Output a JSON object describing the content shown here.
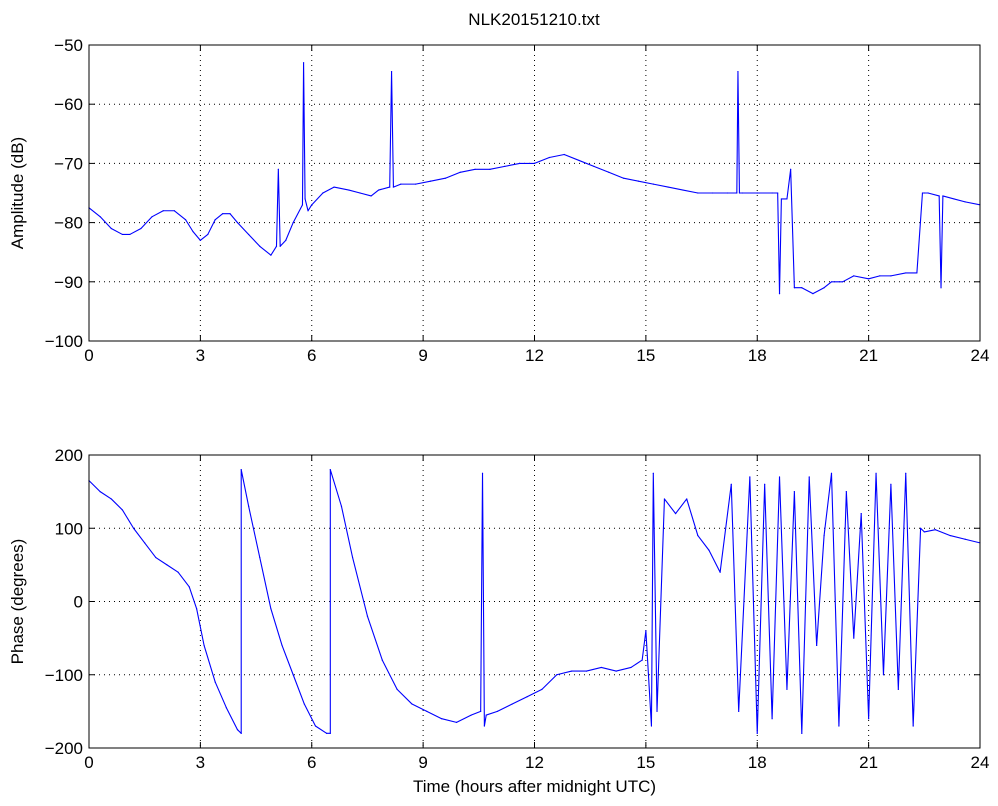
{
  "figure": {
    "title": "NLK20151210.txt",
    "series_color": "#0000ff"
  },
  "chart_data": [
    {
      "type": "line",
      "title": "NLK20151210.txt",
      "xlabel": "",
      "ylabel": "Amplitude (dB)",
      "xlim": [
        0,
        24
      ],
      "ylim": [
        -100,
        -50
      ],
      "xticks": [
        0,
        3,
        6,
        9,
        12,
        15,
        18,
        21,
        24
      ],
      "yticks": [
        -100,
        -90,
        -80,
        -70,
        -60,
        -50
      ],
      "grid": true,
      "series": [
        {
          "color": "#0000ff",
          "x": [
            0,
            0.3,
            0.6,
            0.9,
            1.1,
            1.4,
            1.7,
            2.0,
            2.3,
            2.6,
            2.8,
            3.0,
            3.2,
            3.4,
            3.6,
            3.8,
            4.0,
            4.3,
            4.6,
            4.9,
            5.05,
            5.1,
            5.15,
            5.3,
            5.5,
            5.75,
            5.78,
            5.82,
            5.9,
            6.0,
            6.3,
            6.6,
            7.0,
            7.3,
            7.6,
            7.8,
            8.1,
            8.15,
            8.2,
            8.4,
            8.8,
            9.2,
            9.6,
            10.0,
            10.4,
            10.8,
            11.2,
            11.6,
            12.0,
            12.4,
            12.8,
            13.2,
            13.6,
            14.0,
            14.4,
            14.8,
            15.2,
            15.6,
            16.0,
            16.4,
            16.8,
            17.2,
            17.45,
            17.48,
            17.52,
            17.6,
            18.0,
            18.4,
            18.55,
            18.6,
            18.65,
            18.8,
            18.9,
            19.0,
            19.2,
            19.5,
            19.8,
            20.0,
            20.3,
            20.6,
            21.0,
            21.3,
            21.6,
            22.0,
            22.3,
            22.45,
            22.5,
            22.6,
            22.9,
            22.95,
            23.0,
            23.3,
            23.6,
            24.0
          ],
          "values": [
            -77.5,
            -79,
            -81,
            -82,
            -82,
            -81,
            -79,
            -78,
            -78,
            -79.5,
            -81.5,
            -83,
            -82,
            -79.5,
            -78.5,
            -78.5,
            -80,
            -82,
            -84,
            -85.5,
            -84,
            -71,
            -84,
            -83,
            -80,
            -77,
            -53,
            -76,
            -78,
            -77,
            -75,
            -74,
            -74.5,
            -75,
            -75.5,
            -74.5,
            -74,
            -54.5,
            -74,
            -73.5,
            -73.5,
            -73,
            -72.5,
            -71.5,
            -71,
            -71,
            -70.5,
            -70,
            -70,
            -69,
            -68.5,
            -69.5,
            -70.5,
            -71.5,
            -72.5,
            -73,
            -73.5,
            -74,
            -74.5,
            -75,
            -75,
            -75,
            -75,
            -54.5,
            -75,
            -75,
            -75,
            -75,
            -75,
            -92,
            -76,
            -76,
            -71,
            -91,
            -91,
            -92,
            -91,
            -90,
            -90,
            -89,
            -89.5,
            -89,
            -89,
            -88.5,
            -88.5,
            -75,
            -75,
            -75,
            -75.5,
            -91,
            -75.5,
            -76,
            -76.5,
            -77
          ]
        }
      ]
    },
    {
      "type": "line",
      "title": "",
      "xlabel": "Time (hours after midnight UTC)",
      "ylabel": "Phase (degrees)",
      "xlim": [
        0,
        24
      ],
      "ylim": [
        -200,
        200
      ],
      "xticks": [
        0,
        3,
        6,
        9,
        12,
        15,
        18,
        21,
        24
      ],
      "yticks": [
        -200,
        -100,
        0,
        100,
        200
      ],
      "grid": true,
      "series": [
        {
          "color": "#0000ff",
          "x": [
            0,
            0.3,
            0.6,
            0.9,
            1.2,
            1.5,
            1.8,
            2.1,
            2.4,
            2.7,
            2.9,
            3.1,
            3.4,
            3.7,
            4.0,
            4.1,
            4.1,
            4.3,
            4.6,
            4.9,
            5.2,
            5.5,
            5.8,
            6.1,
            6.4,
            6.5,
            6.5,
            6.8,
            7.1,
            7.5,
            7.9,
            8.3,
            8.7,
            9.1,
            9.5,
            9.9,
            10.3,
            10.55,
            10.6,
            10.65,
            10.7,
            11.0,
            11.4,
            11.8,
            12.2,
            12.6,
            13.0,
            13.4,
            13.8,
            14.2,
            14.6,
            14.9,
            15.0,
            15.15,
            15.2,
            15.3,
            15.5,
            15.8,
            16.1,
            16.4,
            16.7,
            17.0,
            17.3,
            17.5,
            17.8,
            18.0,
            18.2,
            18.4,
            18.6,
            18.8,
            19.0,
            19.2,
            19.4,
            19.6,
            19.8,
            20.0,
            20.2,
            20.4,
            20.6,
            20.8,
            21.0,
            21.2,
            21.4,
            21.6,
            21.8,
            22.0,
            22.2,
            22.4,
            22.5,
            22.8,
            23.2,
            23.6,
            24.0
          ],
          "values": [
            165,
            150,
            140,
            125,
            100,
            80,
            60,
            50,
            40,
            20,
            -10,
            -60,
            -110,
            -145,
            -175,
            -180,
            180,
            130,
            60,
            -10,
            -60,
            -100,
            -140,
            -170,
            -180,
            -180,
            180,
            130,
            60,
            -20,
            -80,
            -120,
            -140,
            -150,
            -160,
            -165,
            -155,
            -150,
            175,
            -170,
            -155,
            -150,
            -140,
            -130,
            -120,
            -100,
            -95,
            -95,
            -90,
            -95,
            -90,
            -80,
            -40,
            -170,
            175,
            -150,
            140,
            120,
            140,
            90,
            70,
            40,
            160,
            -150,
            170,
            -180,
            160,
            -160,
            170,
            -120,
            150,
            -180,
            170,
            -60,
            90,
            175,
            -170,
            150,
            -50,
            120,
            -160,
            175,
            -100,
            160,
            -120,
            175,
            -170,
            100,
            95,
            98,
            90,
            85,
            80
          ]
        }
      ]
    }
  ]
}
